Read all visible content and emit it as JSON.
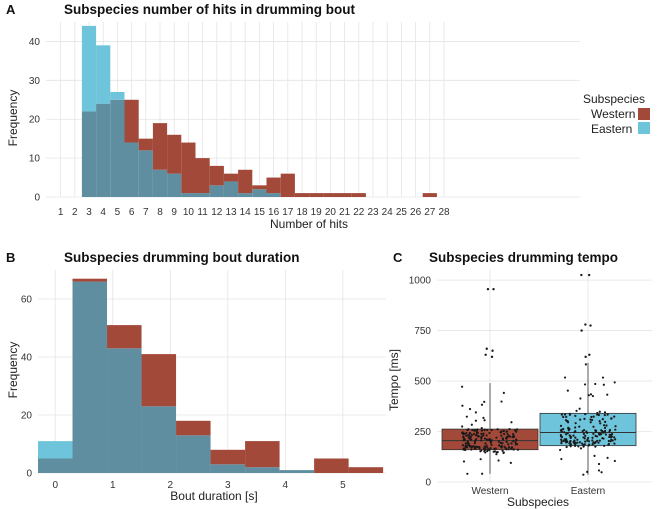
{
  "colors": {
    "western": "#a3493a",
    "eastern": "#6ec4da",
    "overlap": "#5f8ea0"
  },
  "legend": {
    "title": "Subspecies",
    "western": "Western",
    "eastern": "Eastern"
  },
  "chart_data": [
    {
      "panel": "A",
      "type": "bar",
      "title": "Subspecies number of hits in drumming bout",
      "xlabel": "Number of hits",
      "ylabel": "Frequency",
      "ylim": [
        0,
        45
      ],
      "yticks": [
        0,
        10,
        20,
        30,
        40
      ],
      "categories": [
        "1",
        "2",
        "3",
        "4",
        "5",
        "6",
        "7",
        "8",
        "9",
        "10",
        "11",
        "12",
        "13",
        "14",
        "15",
        "16",
        "17",
        "18",
        "19",
        "20",
        "21",
        "22",
        "23",
        "24",
        "25",
        "26",
        "27",
        "28"
      ],
      "series": [
        {
          "name": "Western",
          "values": [
            0,
            0,
            22,
            24,
            25,
            25,
            15,
            19,
            16,
            14,
            10,
            8,
            6,
            7,
            3,
            5,
            6,
            1,
            1,
            1,
            1,
            1,
            0,
            0,
            0,
            0,
            1,
            0
          ]
        },
        {
          "name": "Eastern",
          "values": [
            0,
            0,
            44,
            39,
            27,
            14,
            12,
            7,
            6,
            1,
            1,
            3,
            4,
            1,
            2,
            1,
            0,
            0,
            0,
            0,
            0,
            0,
            0,
            0,
            0,
            0,
            0,
            0
          ]
        }
      ]
    },
    {
      "panel": "B",
      "type": "bar",
      "title": "Subspecies drumming bout duration",
      "xlabel": "Bout duration [s]",
      "ylabel": "Frequency",
      "xlim": [
        -0.3,
        5.75
      ],
      "ylim": [
        0,
        70
      ],
      "yticks": [
        0,
        20,
        40,
        60
      ],
      "xticks": [
        "0",
        "1",
        "2",
        "3",
        "4",
        "5"
      ],
      "bin_width": 0.6,
      "bin_start": -0.3,
      "series": [
        {
          "name": "Western",
          "values": [
            5,
            67,
            51,
            41,
            18,
            8,
            11,
            1,
            5,
            2
          ]
        },
        {
          "name": "Eastern",
          "values": [
            11,
            66,
            43,
            23,
            13,
            3,
            2,
            1,
            0,
            0
          ]
        }
      ]
    },
    {
      "panel": "C",
      "type": "box",
      "title": "Subspecies drumming tempo",
      "xlabel": "Subspecies",
      "ylabel": "Tempo [ms]",
      "ylim": [
        0,
        1050
      ],
      "yticks": [
        "0",
        "250",
        "500",
        "750",
        "1000"
      ],
      "categories": [
        "Western",
        "Eastern"
      ],
      "boxes": [
        {
          "name": "Western",
          "q1": 160,
          "median": 205,
          "q3": 262,
          "whisker_low": 40,
          "whisker_high": 490,
          "outliers": [
            955,
            955,
            660,
            650,
            630,
            620
          ]
        },
        {
          "name": "Eastern",
          "q1": 180,
          "median": 245,
          "q3": 340,
          "whisker_low": 35,
          "whisker_high": 590,
          "outliers": [
            1025,
            1025,
            780,
            775,
            750,
            630,
            620
          ]
        }
      ]
    }
  ]
}
